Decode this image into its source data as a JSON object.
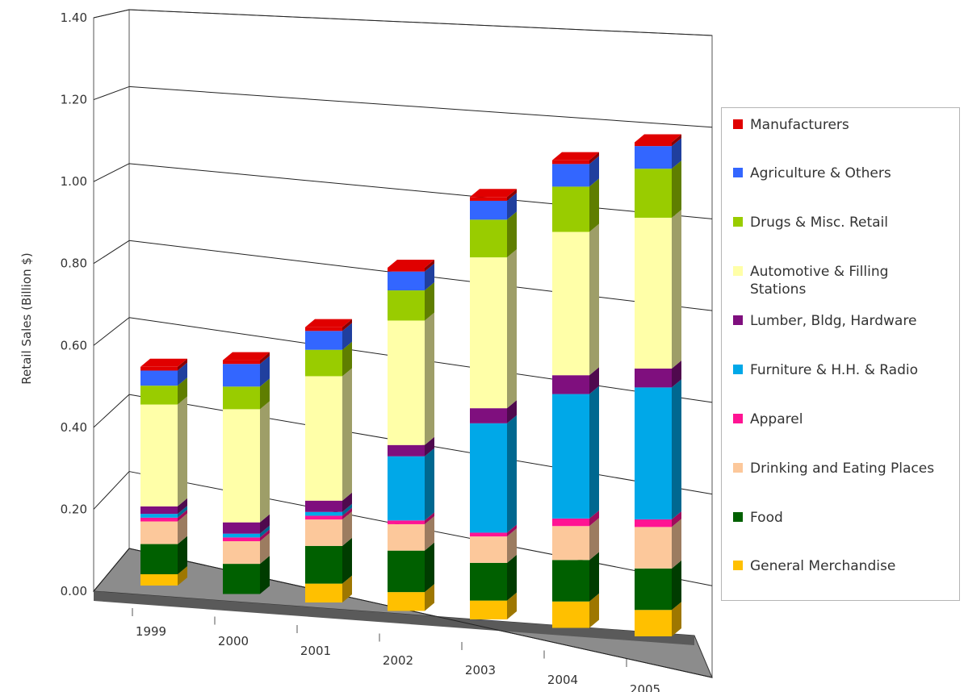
{
  "chart_data": {
    "type": "bar",
    "stacked": true,
    "three_d": true,
    "title": "",
    "xlabel": "",
    "ylabel": "Retail Sales (Billion $)",
    "ylim": [
      0,
      1.4
    ],
    "yticks": [
      "0.00",
      "0.20",
      "0.40",
      "0.60",
      "0.80",
      "1.00",
      "1.20",
      "1.40"
    ],
    "grid": true,
    "legend_position": "right",
    "categories": [
      "1999",
      "2000",
      "2001",
      "2002",
      "2003",
      "2004",
      "2005"
    ],
    "series": [
      {
        "name": "General Merchandise",
        "color": "#ffc000",
        "values": [
          0.03,
          0.0,
          0.05,
          0.05,
          0.05,
          0.07,
          0.07
        ]
      },
      {
        "name": "Food",
        "color": "#006000",
        "values": [
          0.08,
          0.08,
          0.1,
          0.11,
          0.1,
          0.11,
          0.11
        ]
      },
      {
        "name": "Drinking and Eating Places",
        "color": "#fcc89b",
        "values": [
          0.06,
          0.06,
          0.07,
          0.07,
          0.07,
          0.09,
          0.11
        ]
      },
      {
        "name": "Apparel",
        "color": "#ff1493",
        "values": [
          0.01,
          0.01,
          0.01,
          0.01,
          0.01,
          0.02,
          0.02
        ]
      },
      {
        "name": "Furniture & H.H. & Radio",
        "color": "#00a8e8",
        "values": [
          0.01,
          0.01,
          0.01,
          0.17,
          0.29,
          0.33,
          0.35
        ]
      },
      {
        "name": "Lumber, Bldg, Hardware",
        "color": "#7f0f7e",
        "values": [
          0.02,
          0.03,
          0.03,
          0.03,
          0.04,
          0.05,
          0.05
        ]
      },
      {
        "name": "Automotive & Filling Stations",
        "color": "#ffffa8",
        "values": [
          0.27,
          0.3,
          0.33,
          0.33,
          0.4,
          0.38,
          0.4
        ]
      },
      {
        "name": "Drugs & Misc. Retail",
        "color": "#99cc00",
        "values": [
          0.05,
          0.06,
          0.07,
          0.08,
          0.1,
          0.12,
          0.13
        ]
      },
      {
        "name": "Agriculture & Others",
        "color": "#3366ff",
        "values": [
          0.04,
          0.06,
          0.05,
          0.05,
          0.05,
          0.06,
          0.06
        ]
      },
      {
        "name": "Manufacturers",
        "color": "#e00000",
        "values": [
          0.01,
          0.01,
          0.01,
          0.01,
          0.01,
          0.01,
          0.01
        ]
      }
    ]
  },
  "legend": {
    "items": [
      {
        "label": "Manufacturers",
        "color": "#e00000"
      },
      {
        "label": "Agriculture & Others",
        "color": "#3366ff"
      },
      {
        "label": "Drugs & Misc. Retail",
        "color": "#99cc00"
      },
      {
        "label": "Automotive & Filling Stations",
        "color": "#ffffa8"
      },
      {
        "label": "Lumber, Bldg, Hardware",
        "color": "#7f0f7e"
      },
      {
        "label": "Furniture & H.H. & Radio",
        "color": "#00a8e8"
      },
      {
        "label": "Apparel",
        "color": "#ff1493"
      },
      {
        "label": "Drinking and Eating Places",
        "color": "#fcc89b"
      },
      {
        "label": "Food",
        "color": "#006000"
      },
      {
        "label": "General Merchandise",
        "color": "#ffc000"
      }
    ]
  }
}
